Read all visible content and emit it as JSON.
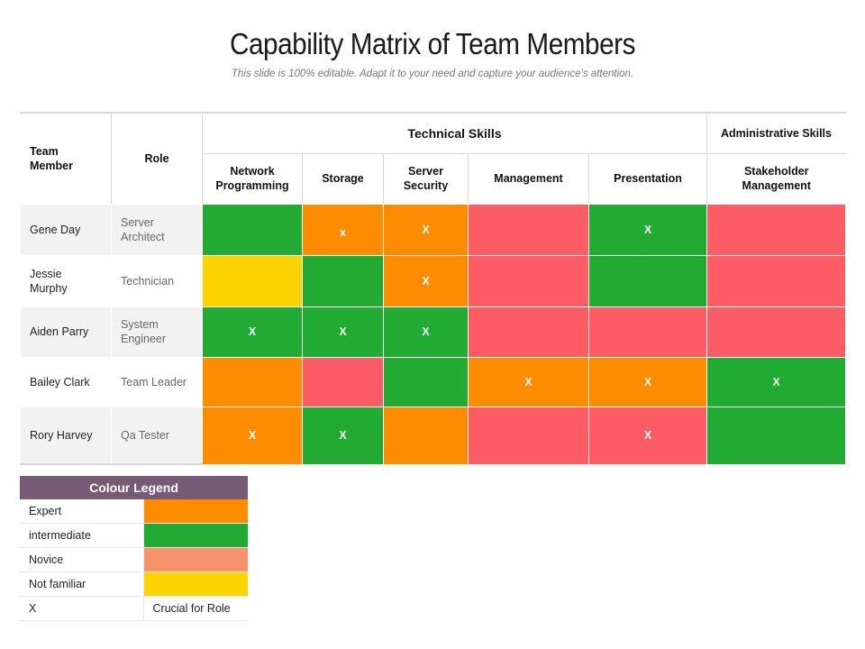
{
  "title": "Capability Matrix of Team Members",
  "subtitle": "This slide is 100% editable. Adapt it to your need and capture your audience’s attention.",
  "colors": {
    "expert": "#fd8c00",
    "intermediate": "#21ab33",
    "novice": "#fd5c64",
    "novice_legend": "#f7926a",
    "not_familiar": "#fdd300"
  },
  "matrix": {
    "header": {
      "team_member": "Team Member",
      "role": "Role",
      "technical_skills": "Technical Skills",
      "administrative_skills": "Administrative Skills",
      "skills": [
        "Network Programming",
        "Storage",
        "Server Security",
        "Management",
        "Presentation",
        "Stakeholder Management"
      ]
    },
    "rows": [
      {
        "name": "Gene Day",
        "role": "Server Architect",
        "cells": [
          {
            "level": "intermediate",
            "mark": ""
          },
          {
            "level": "expert",
            "mark": "x"
          },
          {
            "level": "expert",
            "mark": "X"
          },
          {
            "level": "novice",
            "mark": ""
          },
          {
            "level": "intermediate",
            "mark": "X"
          },
          {
            "level": "novice",
            "mark": ""
          }
        ]
      },
      {
        "name": "Jessie Murphy",
        "role": "Technician",
        "cells": [
          {
            "level": "not_familiar",
            "mark": ""
          },
          {
            "level": "intermediate",
            "mark": ""
          },
          {
            "level": "expert",
            "mark": "X"
          },
          {
            "level": "novice",
            "mark": ""
          },
          {
            "level": "intermediate",
            "mark": ""
          },
          {
            "level": "novice",
            "mark": ""
          }
        ]
      },
      {
        "name": "Aiden Parry",
        "role": "System Engineer",
        "cells": [
          {
            "level": "intermediate",
            "mark": "X"
          },
          {
            "level": "intermediate",
            "mark": "X"
          },
          {
            "level": "intermediate",
            "mark": "X"
          },
          {
            "level": "novice",
            "mark": ""
          },
          {
            "level": "novice",
            "mark": ""
          },
          {
            "level": "novice",
            "mark": ""
          }
        ]
      },
      {
        "name": "Bailey Clark",
        "role": "Team Leader",
        "cells": [
          {
            "level": "expert",
            "mark": ""
          },
          {
            "level": "novice",
            "mark": ""
          },
          {
            "level": "intermediate",
            "mark": ""
          },
          {
            "level": "expert",
            "mark": "X"
          },
          {
            "level": "expert",
            "mark": "X"
          },
          {
            "level": "intermediate",
            "mark": "X"
          }
        ]
      },
      {
        "name": "Rory Harvey",
        "role": "Qa Tester",
        "cells": [
          {
            "level": "expert",
            "mark": "X"
          },
          {
            "level": "intermediate",
            "mark": "X"
          },
          {
            "level": "expert",
            "mark": ""
          },
          {
            "level": "novice",
            "mark": ""
          },
          {
            "level": "novice",
            "mark": "X"
          },
          {
            "level": "intermediate",
            "mark": ""
          }
        ]
      }
    ]
  },
  "legend": {
    "title": "Colour Legend",
    "items": [
      {
        "label": "Expert",
        "level": "expert",
        "text": ""
      },
      {
        "label": "intermediate",
        "level": "intermediate",
        "text": ""
      },
      {
        "label": "Novice",
        "level": "novice_legend",
        "text": ""
      },
      {
        "label": "Not familiar",
        "level": "not_familiar",
        "text": ""
      },
      {
        "label": "X",
        "level": "",
        "text": "Crucial for Role"
      }
    ]
  }
}
